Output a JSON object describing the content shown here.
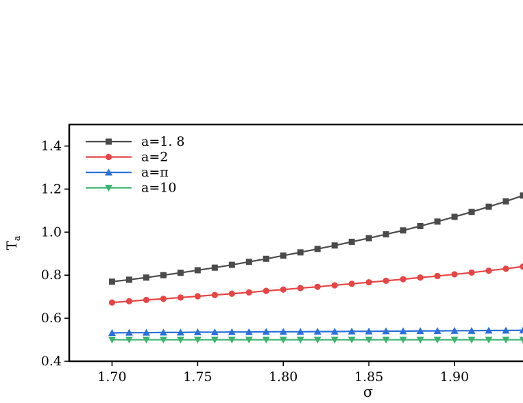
{
  "chart_data": {
    "type": "line",
    "xlabel": "σ",
    "ylabel_main": "T",
    "ylabel_sub": "a",
    "xlim": [
      1.675,
      1.94
    ],
    "ylim": [
      0.4,
      1.5
    ],
    "xticks": [
      1.7,
      1.75,
      1.8,
      1.85,
      1.9
    ],
    "xtick_labels": [
      "1.70",
      "1.75",
      "1.80",
      "1.85",
      "1.90"
    ],
    "yticks": [
      0.4,
      0.6,
      0.8,
      1.0,
      1.2,
      1.4
    ],
    "ytick_labels": [
      "0.4",
      "0.6",
      "0.8",
      "1.0",
      "1.2",
      "1.4"
    ],
    "legend_position": "top-left",
    "x": [
      1.7,
      1.71,
      1.72,
      1.73,
      1.74,
      1.75,
      1.76,
      1.77,
      1.78,
      1.79,
      1.8,
      1.81,
      1.82,
      1.83,
      1.84,
      1.85,
      1.86,
      1.87,
      1.88,
      1.89,
      1.9,
      1.91,
      1.92,
      1.93,
      1.94
    ],
    "series": [
      {
        "name": "a=1. 8",
        "color": "#4a4a4a",
        "marker": "square",
        "values": [
          0.77,
          0.779,
          0.789,
          0.8,
          0.811,
          0.823,
          0.835,
          0.848,
          0.862,
          0.876,
          0.891,
          0.906,
          0.922,
          0.938,
          0.955,
          0.972,
          0.99,
          1.008,
          1.028,
          1.049,
          1.071,
          1.094,
          1.118,
          1.143,
          1.17
        ]
      },
      {
        "name": "a=2",
        "color": "#e64545",
        "marker": "circle",
        "values": [
          0.673,
          0.679,
          0.685,
          0.69,
          0.696,
          0.702,
          0.708,
          0.714,
          0.72,
          0.727,
          0.733,
          0.74,
          0.746,
          0.753,
          0.76,
          0.767,
          0.774,
          0.781,
          0.789,
          0.796,
          0.804,
          0.812,
          0.821,
          0.83,
          0.84
        ]
      },
      {
        "name": "a=π",
        "color": "#2a6fdb",
        "marker": "triangle-up",
        "values": [
          0.532,
          0.533,
          0.533,
          0.534,
          0.534,
          0.535,
          0.535,
          0.536,
          0.536,
          0.537,
          0.537,
          0.537,
          0.538,
          0.538,
          0.539,
          0.539,
          0.54,
          0.54,
          0.541,
          0.541,
          0.542,
          0.542,
          0.543,
          0.543,
          0.544
        ]
      },
      {
        "name": "a=10",
        "color": "#3cb36e",
        "marker": "triangle-down",
        "values": [
          0.5,
          0.5,
          0.5,
          0.5,
          0.5,
          0.5,
          0.5,
          0.5,
          0.5,
          0.5,
          0.5,
          0.5,
          0.5,
          0.5,
          0.5,
          0.5,
          0.5,
          0.5,
          0.5,
          0.5,
          0.5,
          0.5,
          0.5,
          0.5,
          0.5
        ]
      }
    ]
  }
}
